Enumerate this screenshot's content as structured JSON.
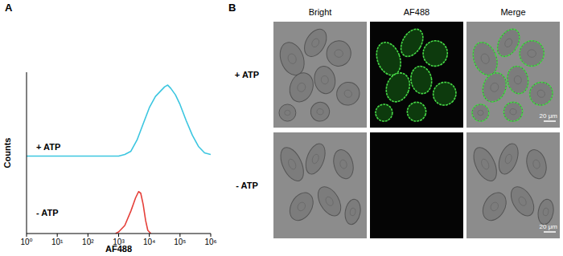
{
  "chart_data": {
    "type": "line",
    "x_label": "AF488",
    "y_label": "Counts",
    "log": "x",
    "xlim": [
      1,
      1000000
    ],
    "xticks": [
      {
        "value": 1,
        "label": "10⁰"
      },
      {
        "value": 10,
        "label": "10¹"
      },
      {
        "value": 100,
        "label": "10²"
      },
      {
        "value": 1000,
        "label": "10³"
      },
      {
        "value": 10000,
        "label": "10⁴"
      },
      {
        "value": 100000,
        "label": "10⁵"
      },
      {
        "value": 1000000,
        "label": "10⁶"
      }
    ],
    "ylim": [
      0,
      100
    ],
    "tick_labels": "x",
    "series": [
      {
        "name": "+ ATP",
        "color": "#3cc6e0",
        "baseline": 48,
        "x": [
          1,
          1000,
          1585,
          2512,
          3981,
          6310,
          10000,
          15849,
          22387,
          31623,
          39811,
          50119,
          70795,
          100000,
          158489,
          251189,
          398107,
          630957,
          1000000
        ],
        "values": [
          0,
          0,
          1,
          3,
          10,
          20,
          30,
          37,
          40,
          43,
          44,
          42,
          38,
          32,
          22,
          13,
          6,
          2,
          1
        ]
      },
      {
        "name": "- ATP",
        "color": "#e5403a",
        "baseline": 0,
        "x": [
          794,
          1000,
          1585,
          2512,
          3548,
          4467,
          5248,
          6310,
          7586,
          8913,
          11220
        ],
        "values": [
          0,
          1,
          5,
          14,
          22,
          26,
          25,
          18,
          8,
          2,
          0
        ]
      }
    ]
  },
  "figure": {
    "panel_labels": [
      "A",
      "B"
    ],
    "image_grid": {
      "columns": [
        "Bright",
        "AF488",
        "Merge"
      ],
      "rows": [
        "+ ATP",
        "- ATP"
      ],
      "scale_bar": "20 μm"
    }
  }
}
